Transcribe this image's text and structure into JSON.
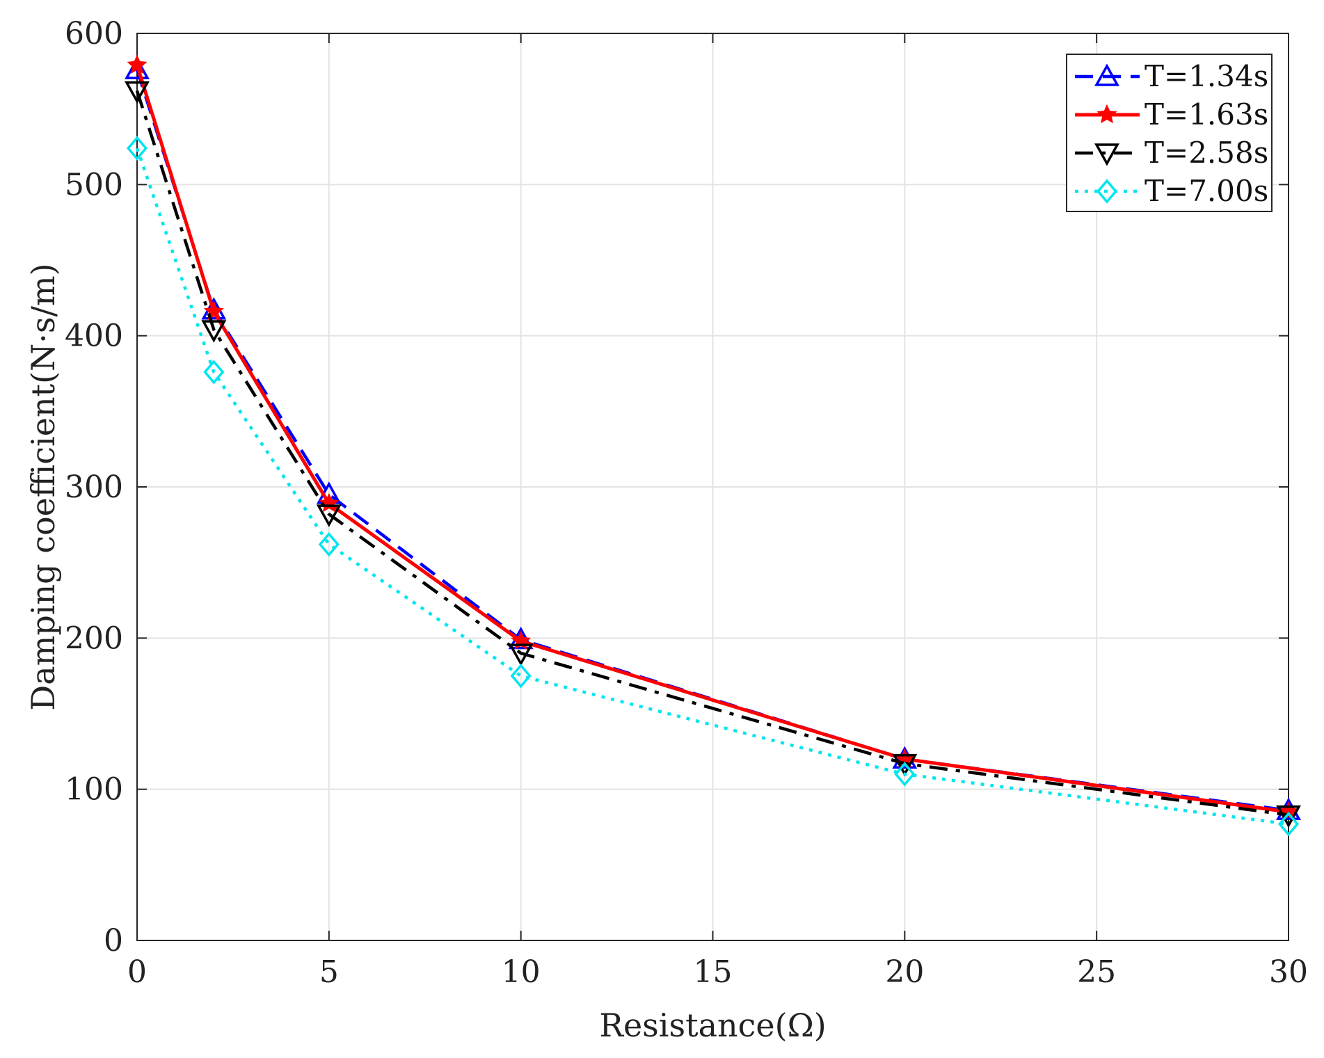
{
  "chart_data": {
    "type": "line",
    "xlabel": "Resistance(Ω)",
    "ylabel": "Damping coefficient(N·s/m)",
    "xlim": [
      0,
      30
    ],
    "ylim": [
      0,
      600
    ],
    "xticks": [
      0,
      5,
      10,
      15,
      20,
      25,
      30
    ],
    "yticks": [
      0,
      100,
      200,
      300,
      400,
      500,
      600
    ],
    "grid": true,
    "legend_position": "top-right",
    "x": [
      0,
      2,
      5,
      10,
      20,
      30
    ],
    "series": [
      {
        "name": "T=1.34s",
        "values": [
          576,
          417,
          295,
          199,
          120,
          86
        ],
        "color": "#0000ff",
        "dash": "dashed",
        "marker": "triangle-up"
      },
      {
        "name": "T=1.63s",
        "values": [
          579,
          416,
          289,
          198,
          120,
          85
        ],
        "color": "#ff0000",
        "dash": "solid",
        "marker": "star"
      },
      {
        "name": "T=2.58s",
        "values": [
          562,
          404,
          282,
          190,
          117,
          83
        ],
        "color": "#000000",
        "dash": "dashdot",
        "marker": "triangle-down"
      },
      {
        "name": "T=7.00s",
        "values": [
          524,
          376,
          262,
          175,
          110,
          77
        ],
        "color": "#00e5ee",
        "dash": "dotted",
        "marker": "diamond"
      }
    ]
  }
}
